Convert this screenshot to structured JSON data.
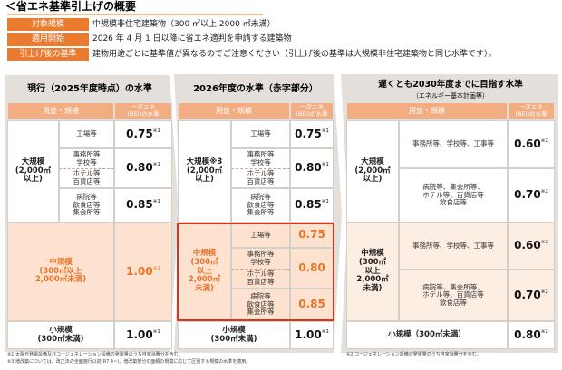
{
  "header": {
    "title": "＜省エネ基準引上げの概要",
    "rows": [
      {
        "label": "対象規模",
        "text": "中規模非住宅建築物（300 ㎡以上 2000 ㎡未満）"
      },
      {
        "label": "適用開始",
        "text": "2026 年 4 月 1 日以降に省エネ適判を申請する建築物"
      },
      {
        "label": "引上げ後の基準",
        "text": "建物用途ごとに基準値が異なるのでご注意ください（引上げ後の基準は大規模非住宅建築物と同じ水準です）。"
      }
    ]
  },
  "panels": [
    {
      "title": "現行（2025年度時点）の水準",
      "col_use": "用途・規模",
      "col_bei": "一次エネ\n(BEI)の水準",
      "groups": [
        {
          "label": "大規模\n(2,000㎡\n以上)",
          "rows": [
            {
              "uses": [
                "工場等"
              ],
              "bei": "0.75",
              "note": "※1"
            },
            {
              "uses": [
                "事務所等\n学校等",
                "ホテル等\n百貨店等"
              ],
              "bei": "0.80",
              "note": "※1"
            },
            {
              "uses": [
                "病院等\n飲食店等\n集会所等"
              ],
              "bei": "0.85",
              "note": "※1"
            }
          ]
        },
        {
          "label": "中規模\n(300㎡以上\n2,000㎡未満)",
          "label_color": "#e8742a",
          "value_color": "#e8742a",
          "background": "#fde3cf",
          "rows": [
            {
              "bei": "1.00",
              "note": "※1"
            }
          ]
        },
        {
          "label": "小規模\n(300㎡未満)",
          "rows": [
            {
              "bei": "1.00",
              "note": "※1"
            }
          ]
        }
      ]
    },
    {
      "title": "2026年度の水準（赤字部分）",
      "col_use": "用途・規模",
      "col_bei": "一次エネ\n(BEI)の水準",
      "groups": [
        {
          "label": "大規模※3\n(2,000㎡\n以上)",
          "rows": [
            {
              "uses": [
                "工場等"
              ],
              "bei": "0.75",
              "note": "※1"
            },
            {
              "uses": [
                "事務所等\n学校等",
                "ホテル等\n百貨店等"
              ],
              "bei": "0.80",
              "note": "※1"
            },
            {
              "uses": [
                "病院等\n飲食店等\n集会所等"
              ],
              "bei": "0.85",
              "note": "※1"
            }
          ]
        },
        {
          "label": "中規模\n(300㎡\n以上\n2,000㎡\n未満)",
          "label_color": "#e8742a",
          "value_color": "#e8742a",
          "background": "#fde3cf",
          "frame_color": "#d9341c",
          "rows": [
            {
              "uses": [
                "工場等"
              ],
              "bei": "0.75"
            },
            {
              "uses": [
                "事務所等\n学校等",
                "ホテル等\n百貨店等"
              ],
              "bei": "0.80"
            },
            {
              "uses": [
                "病院等\n飲食店等\n集会所等"
              ],
              "bei": "0.85"
            }
          ]
        },
        {
          "label": "小規模\n(300㎡未満)",
          "rows": [
            {
              "bei": "1.00",
              "note": "※1"
            }
          ]
        }
      ]
    },
    {
      "title": "遅くとも2030年度までに目指す水準",
      "subtitle": "（エネルギー基本計画等）",
      "col_use": "用途・規模",
      "col_bei": "一次エネ\n(BEI)の水準",
      "groups": [
        {
          "label": "大規模\n(2,000㎡\n以上)",
          "rows": [
            {
              "uses": [
                "事務所等、学校等、工事等"
              ],
              "bei": "0.60",
              "note": "※2"
            },
            {
              "uses": [
                "病院等、集会所等、\nホテル等、百貨店等\n飲食店等"
              ],
              "bei": "0.70",
              "note": "※2"
            }
          ]
        },
        {
          "label": "中規模\n(300㎡\n以上\n2,000㎡\n未満)",
          "background": "#fdeee3",
          "rows": [
            {
              "uses": [
                "事務所等、学校等、工事等"
              ],
              "bei": "0.60",
              "note": "※2"
            },
            {
              "uses": [
                "病院等、集会所等、\nホテル等、百貨店等\n飲食店等"
              ],
              "bei": "0.70",
              "note": "※2"
            }
          ]
        },
        {
          "label": "小規模（300㎡未満）",
          "rows": [
            {
              "bei": "0.80",
              "note": "※2"
            }
          ]
        }
      ]
    }
  ],
  "footnotes": [
    "※1 太陽光発電設備及びコージェネレーション設備の発電量のうち自家消費分を含む。",
    "※3 増改築については、改正法の全面施行以前(R7.4~)、増改築部分の面積の規模に応じて区別する規模の水準を適用。"
  ],
  "footnotes_right": [
    "※2 コージェネレーション設備の発電量のうち自家消費分を含む。"
  ]
}
